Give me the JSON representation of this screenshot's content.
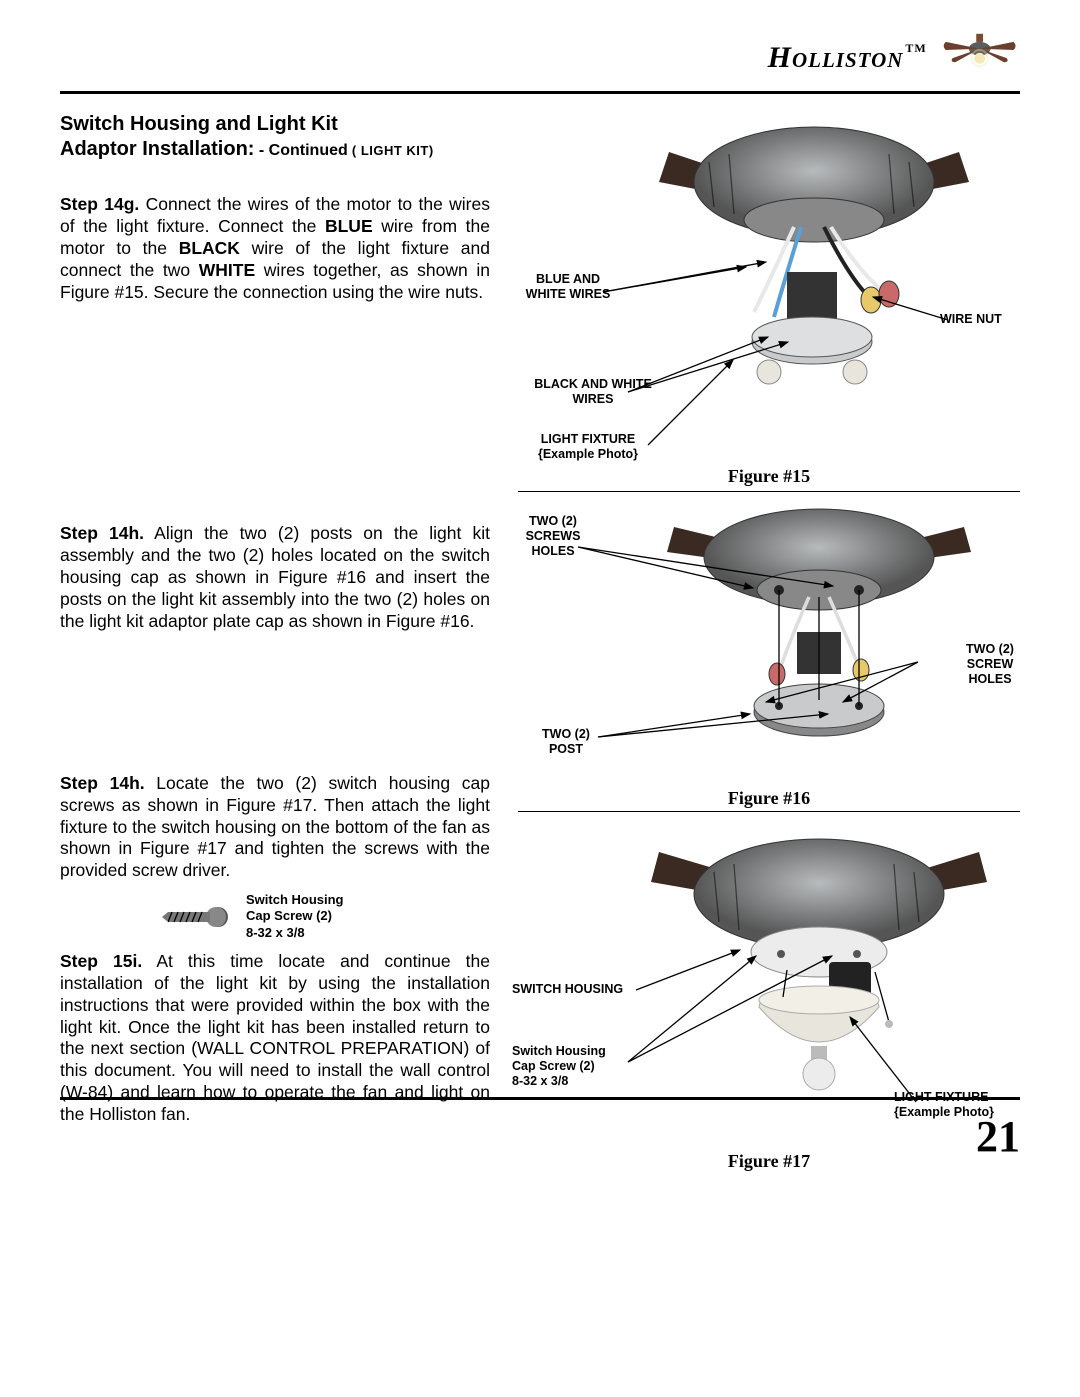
{
  "brand": "Holliston",
  "trademark": "TM",
  "page_number": "21",
  "title": {
    "line1": "Switch Housing and Light Kit",
    "line2a": "Adaptor Installation:",
    "line2b": " - Continued",
    "line2c": " ( LIGHT KIT)"
  },
  "steps": {
    "s14g_label": "Step 14g.",
    "s14g_text_a": " Connect the wires of the motor to the wires of the light fixture. Connect the ",
    "s14g_blue": "BLUE",
    "s14g_text_b": " wire from the motor to the ",
    "s14g_black": "BLACK",
    "s14g_text_c": " wire of the light fixture and connect the two ",
    "s14g_white": "WHITE",
    "s14g_text_d": " wires together, as shown in Figure #15. Secure the connection using the wire nuts.",
    "s14h1_label": "Step 14h.",
    "s14h1_text": " Align the two (2) posts on the light kit assembly and the two (2) holes located on the switch housing cap as shown in Figure #16 and insert the posts on the light kit assembly into the two (2) holes on the light kit adaptor plate cap as shown in Figure #16.",
    "s14h2_label": "Step 14h.",
    "s14h2_text": " Locate the two (2) switch housing cap screws as shown in Figure #17. Then attach the light fixture to the switch housing on the bottom of the fan as shown in Figure #17 and tighten the screws with the provided screw driver.",
    "s15i_label": "Step 15i.",
    "s15i_text": " At this time locate and continue the installation of the light kit by using the installation instructions that were provided within the box with the light kit. Once the light kit has been installed return to the next section (WALL CONTROL PREPARATION) of this document. You will need to install the wall control (W-84) and learn how to operate the fan and light on the Holliston fan."
  },
  "screw_label": {
    "l1": "Switch Housing",
    "l2": "Cap Screw (2)",
    "l3": "8-32 x 3/8"
  },
  "figures": {
    "f15": {
      "caption": "Figure #15",
      "callouts": {
        "blue_white": "BLUE AND\nWHITE WIRES",
        "wire_nut": "WIRE NUT",
        "black_white": "BLACK AND WHITE\nWIRES",
        "light_fixture": "LIGHT FIXTURE\n{Example Photo}"
      }
    },
    "f16": {
      "caption": "Figure #16",
      "callouts": {
        "two_screw_holes_l": "TWO (2)\nSCREWS\nHOLES",
        "two_screw_holes_r": "TWO (2)\nSCREW\nHOLES",
        "two_post": "TWO (2)\nPOST"
      }
    },
    "f17": {
      "caption": "Figure #17",
      "callouts": {
        "switch_housing": "SWITCH HOUSING",
        "cap_screw": "Switch Housing\nCap Screw (2)\n8-32 x 3/8",
        "light_fixture": "LIGHT FIXTURE\n{Example Photo}"
      }
    }
  },
  "colors": {
    "text": "#000000",
    "bg": "#ffffff",
    "motor_metal": "#8a8d8f",
    "motor_dark": "#4a4c4d",
    "wire_blue": "#5aa0d8",
    "wire_white": "#eeeeee",
    "wire_black": "#222222",
    "nut_yellow": "#e8c96a",
    "nut_red": "#c96a6a",
    "adaptor": "#c9cacc",
    "blade": "#6b3f2d",
    "bulb": "#e8e6dc"
  }
}
